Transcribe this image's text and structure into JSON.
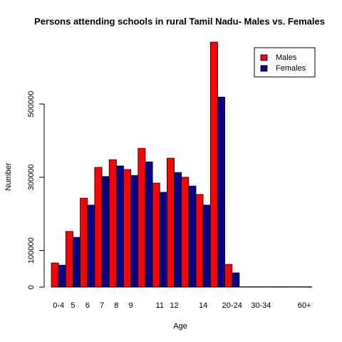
{
  "chart_data": {
    "type": "bar",
    "title": "Persons attending schools in rural Tamil Nadu- Males vs. Females",
    "x_label": "Age",
    "y_label": "Number",
    "categories": [
      "0-4",
      "5",
      "6",
      "7",
      "8",
      "9",
      null,
      "11",
      "12",
      null,
      "14",
      null,
      "20-24",
      null,
      "30-34",
      null,
      null,
      "60+"
    ],
    "series": [
      {
        "name": "Males",
        "color": "#ff0000",
        "values": [
          66000,
          152000,
          243000,
          327000,
          348000,
          321000,
          379000,
          284000,
          352000,
          300000,
          253000,
          669000,
          62000,
          1000,
          1000,
          1000,
          1000,
          1000
        ]
      },
      {
        "name": "Females",
        "color": "#00008b",
        "values": [
          60000,
          136000,
          224000,
          302000,
          331000,
          305000,
          342000,
          259000,
          313000,
          276000,
          224000,
          519000,
          39000,
          1000,
          1000,
          1000,
          1000,
          1000
        ]
      }
    ],
    "ylim": [
      0,
      680000
    ],
    "yticks": [
      0,
      100000,
      300000,
      500000
    ],
    "legend": "top-right"
  }
}
